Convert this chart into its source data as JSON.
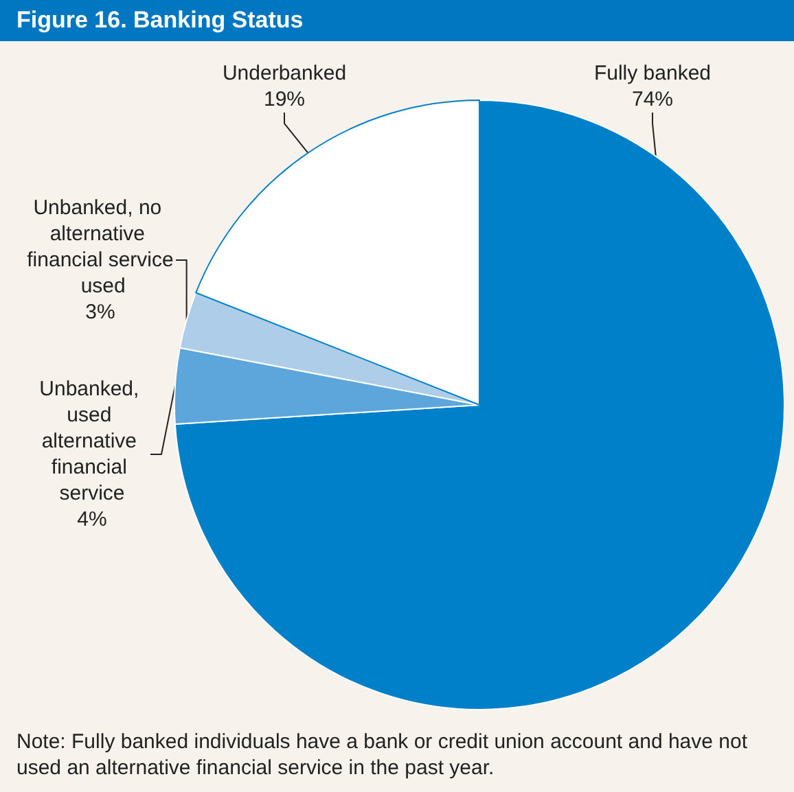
{
  "chart_data": {
    "type": "pie",
    "title": "Figure 16. Banking Status",
    "categories": [
      "Fully banked",
      "Unbanked, used alternative financial service",
      "Unbanked, no alternative financial service used",
      "Underbanked"
    ],
    "values": [
      74,
      4,
      3,
      19
    ],
    "value_labels": [
      "74%",
      "4%",
      "3%",
      "19%"
    ],
    "colors": [
      "#0080c8",
      "#5ca6dc",
      "#aecde9",
      "#ffffff"
    ],
    "legend": false,
    "annotations": [
      "Note: Fully banked individuals have a bank or credit union account and have not used an alternative financial service in the past year."
    ]
  }
}
